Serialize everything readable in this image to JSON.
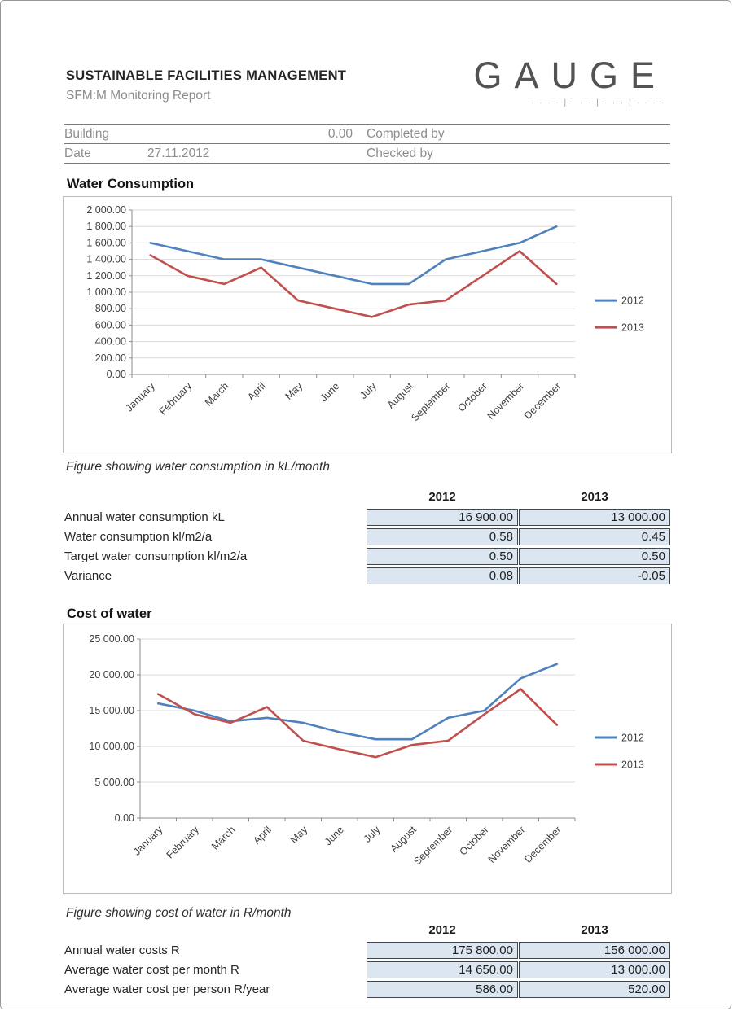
{
  "page": {
    "header": {
      "title": "SUSTAINABLE FACILITIES MANAGEMENT",
      "subtitle": "SFM:M Monitoring  Report",
      "logo_text": "GAUGE",
      "logo_dots": "· · · · | · · · | · · · | · · · ·"
    },
    "meta": {
      "building_label": "Building",
      "building_value": "0.00",
      "completed_by_label": "Completed by",
      "date_label": "Date",
      "date_value": "27.11.2012",
      "checked_by_label": "Checked by"
    },
    "sections": {
      "water": {
        "title": "Water Consumption",
        "caption": "Figure showing water consumption in kL/month"
      },
      "cost": {
        "title": "Cost of water",
        "caption": "Figure showing cost of water in R/month"
      }
    }
  },
  "colors": {
    "series_2012": "#4F81BD",
    "series_2013": "#C0504D",
    "table_cell_fill": "#DCE6F1"
  },
  "tables": [
    {
      "col_headers": [
        "2012",
        "2013"
      ],
      "rows": [
        {
          "label": "Annual water consumption kL",
          "values": [
            "16 900.00",
            "13 000.00"
          ]
        },
        {
          "label": "Water consumption kl/m2/a",
          "values": [
            "0.58",
            "0.45"
          ]
        },
        {
          "label": "Target water consumption kl/m2/a",
          "values": [
            "0.50",
            "0.50"
          ]
        },
        {
          "label": "Variance",
          "values": [
            "0.08",
            "-0.05"
          ]
        }
      ]
    },
    {
      "col_headers": [
        "2012",
        "2013"
      ],
      "rows": [
        {
          "label": "Annual water costs R",
          "values": [
            "175 800.00",
            "156 000.00"
          ]
        },
        {
          "label": "Average water cost per month R",
          "values": [
            "14 650.00",
            "13 000.00"
          ]
        },
        {
          "label": "Average water cost per person R/year",
          "values": [
            "586.00",
            "520.00"
          ]
        }
      ]
    }
  ],
  "chart_data": [
    {
      "type": "line",
      "title": "Water Consumption",
      "xlabel": "",
      "ylabel": "",
      "categories": [
        "January",
        "February",
        "March",
        "April",
        "May",
        "June",
        "July",
        "August",
        "September",
        "October",
        "November",
        "December"
      ],
      "series": [
        {
          "name": "2012",
          "color": "#4F81BD",
          "values": [
            1600,
            1500,
            1400,
            1400,
            1300,
            1200,
            1100,
            1100,
            1400,
            1500,
            1600,
            1800
          ]
        },
        {
          "name": "2013",
          "color": "#C0504D",
          "values": [
            1450,
            1200,
            1100,
            1300,
            900,
            800,
            700,
            850,
            900,
            1200,
            1500,
            1100
          ]
        }
      ],
      "ylim": [
        0,
        2000
      ],
      "ytick_step": 200,
      "ytick_labels": [
        "0.00",
        "200.00",
        "400.00",
        "600.00",
        "800.00",
        "1 000.00",
        "1 200.00",
        "1 400.00",
        "1 600.00",
        "1 800.00",
        "2 000.00"
      ],
      "grid": true,
      "legend_position": "right"
    },
    {
      "type": "line",
      "title": "Cost of water",
      "xlabel": "",
      "ylabel": "",
      "categories": [
        "January",
        "February",
        "March",
        "April",
        "May",
        "June",
        "July",
        "August",
        "September",
        "October",
        "November",
        "December"
      ],
      "series": [
        {
          "name": "2012",
          "color": "#4F81BD",
          "values": [
            16000,
            15000,
            13500,
            14000,
            13300,
            12000,
            11000,
            11000,
            14000,
            15000,
            19500,
            21500
          ]
        },
        {
          "name": "2013",
          "color": "#C0504D",
          "values": [
            17300,
            14500,
            13300,
            15500,
            10800,
            9600,
            8500,
            10200,
            10800,
            14500,
            18000,
            13000
          ]
        }
      ],
      "ylim": [
        0,
        25000
      ],
      "ytick_step": 5000,
      "ytick_labels": [
        "0.00",
        "5 000.00",
        "10 000.00",
        "15 000.00",
        "20 000.00",
        "25 000.00"
      ],
      "grid": true,
      "legend_position": "right"
    }
  ]
}
